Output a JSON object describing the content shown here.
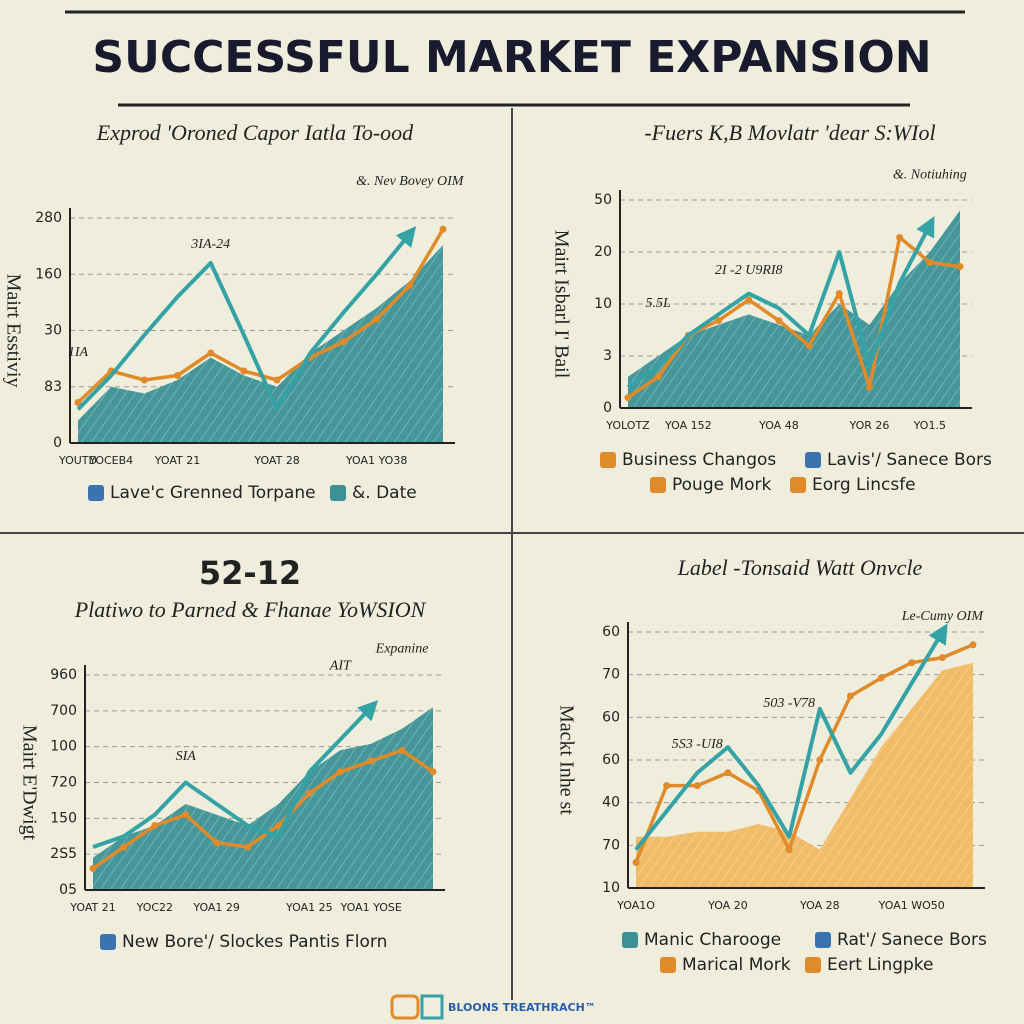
{
  "title": "SUCCESSFUL MARKET EXPANSION",
  "footer": "BLOONS TREATHRACH™",
  "chart_data": [
    {
      "type": "line",
      "title": "Exprod 'Oroned Capor Iatla To-ood",
      "ylabel": "Mairt Esstiviy",
      "ylim": [
        0,
        100
      ],
      "y_labels": [
        "280",
        "160",
        "30",
        "83",
        "0"
      ],
      "categories": [
        "YOUTD",
        "YOCEB4",
        null,
        "YOAT 21",
        null,
        null,
        "YOAT 28",
        null,
        null,
        "YOA1 YO38",
        null,
        null
      ],
      "series": [
        {
          "style": "area",
          "color": "#3b9196",
          "values": [
            10,
            25,
            22,
            28,
            38,
            30,
            25,
            40,
            50,
            60,
            72,
            88
          ]
        },
        {
          "style": "line",
          "color": "#e08a2a",
          "values": [
            18,
            32,
            28,
            30,
            40,
            32,
            28,
            38,
            45,
            55,
            70,
            95
          ]
        },
        {
          "style": "line",
          "color": "#35a3a6",
          "arrow": true,
          "values": [
            15,
            30,
            48,
            65,
            80,
            48,
            15,
            40,
            58,
            75,
            93,
            null
          ]
        }
      ],
      "annotations": [
        {
          "text": "3IA-24",
          "x": 4,
          "y": 88
        },
        {
          "text": "1IA",
          "x": 0,
          "y": 40
        },
        {
          "text": "&. Nev Bovey OIM",
          "x": 10,
          "y": 116
        }
      ],
      "legend": [
        {
          "label": "Lave'c Grenned Torpane",
          "color": "#3a73b0"
        },
        {
          "label": "&. Date",
          "color": "#3b9196"
        }
      ]
    },
    {
      "type": "line",
      "title": "-Fuers K,B Movlatr 'dear S:WIol",
      "ylabel": "Mairt Isbarl I' Bail",
      "ylim": [
        0,
        100
      ],
      "y_labels": [
        "50",
        "20",
        "10",
        "3",
        "0"
      ],
      "categories": [
        "YOLOTZ",
        null,
        "YOA 152",
        null,
        null,
        "YOA 48",
        null,
        null,
        "YOR 26",
        null,
        "YO1.5",
        null
      ],
      "series": [
        {
          "style": "area",
          "color": "#3b9196",
          "values": [
            15,
            25,
            35,
            40,
            45,
            40,
            35,
            50,
            40,
            60,
            75,
            95
          ]
        },
        {
          "style": "line",
          "color": "#e08a2a",
          "values": [
            5,
            15,
            35,
            42,
            52,
            42,
            30,
            55,
            10,
            82,
            70,
            68
          ]
        },
        {
          "style": "line",
          "color": "#35a3a6",
          "arrow": true,
          "values": [
            10,
            20,
            35,
            45,
            55,
            48,
            35,
            75,
            20,
            60,
            88,
            null
          ]
        }
      ],
      "annotations": [
        {
          "text": "5.5L",
          "x": 1,
          "y": 50
        },
        {
          "text": "2I -2 U9RI8",
          "x": 4,
          "y": 66
        },
        {
          "text": "&. Notiuhing",
          "x": 10,
          "y": 112
        }
      ],
      "legend": [
        {
          "label": "Business Changos",
          "color": "#e08a2a"
        },
        {
          "label": "Lavis'/ Sanece Bors",
          "color": "#3a73b0"
        },
        {
          "label": "Pouge Mork",
          "color": "#e08a2a"
        },
        {
          "label": "Eorg Lincsfe",
          "color": "#e08a2a"
        }
      ]
    },
    {
      "type": "line",
      "heading": "52-12",
      "title": "Platiwo to Parned & Fhanae YoWSION",
      "ylabel": "Mairt E'Dwigt",
      "ylim": [
        0,
        100
      ],
      "y_labels": [
        "960",
        "700",
        "100",
        "720",
        "150",
        "2S5",
        "05"
      ],
      "categories": [
        "YOAT 21",
        null,
        "YOC22",
        null,
        "YOA1 29",
        null,
        null,
        "YOA1 25",
        null,
        "YOA1 YOSE",
        null,
        null
      ],
      "series": [
        {
          "style": "area",
          "color": "#3b9196",
          "values": [
            15,
            25,
            30,
            40,
            35,
            30,
            40,
            55,
            65,
            68,
            75,
            85
          ]
        },
        {
          "style": "line",
          "color": "#e08a2a",
          "values": [
            10,
            20,
            30,
            35,
            22,
            20,
            30,
            45,
            55,
            60,
            65,
            55
          ]
        },
        {
          "style": "line",
          "color": "#35a3a6",
          "arrow": true,
          "values": [
            20,
            25,
            35,
            50,
            40,
            30,
            25,
            55,
            70,
            85,
            null,
            null
          ]
        }
      ],
      "annotations": [
        {
          "text": "SIA",
          "x": 3,
          "y": 62
        },
        {
          "text": "AIT",
          "x": 8,
          "y": 104
        },
        {
          "text": "Expanine",
          "x": 10,
          "y": 112
        }
      ],
      "legend": [
        {
          "label": "New Bore'/ Slockes Pantis Florn",
          "color": "#3a73b0"
        }
      ]
    },
    {
      "type": "line",
      "title": "Label -Tonsaid Watt Onvcle",
      "ylabel": "Mackt Inhe st",
      "ylim": [
        0,
        100
      ],
      "y_labels": [
        "60",
        "70",
        "60",
        "60",
        "40",
        "70",
        "10"
      ],
      "categories": [
        "YOA1O",
        null,
        null,
        "YOA 20",
        null,
        null,
        "YOA 28",
        null,
        null,
        "YOA1 WO50",
        null,
        null
      ],
      "series": [
        {
          "style": "area",
          "color": "#f0b860",
          "values": [
            20,
            20,
            22,
            22,
            25,
            22,
            15,
            35,
            55,
            70,
            85,
            88
          ]
        },
        {
          "style": "line",
          "color": "#e08a2a",
          "values": [
            10,
            40,
            40,
            45,
            38,
            15,
            50,
            75,
            82,
            88,
            90,
            95
          ]
        },
        {
          "style": "line",
          "color": "#35a3a6",
          "arrow": true,
          "values": [
            15,
            30,
            45,
            55,
            40,
            20,
            70,
            45,
            60,
            80,
            100,
            null
          ]
        }
      ],
      "annotations": [
        {
          "text": "5S3 -UI8",
          "x": 2,
          "y": 56
        },
        {
          "text": "503 -V78",
          "x": 5,
          "y": 72
        },
        {
          "text": "Le-Cumy OIM",
          "x": 10,
          "y": 106
        }
      ],
      "legend": [
        {
          "label": "Manic Charooge",
          "color": "#3b9196"
        },
        {
          "label": "Rat'/ Sanece Bors",
          "color": "#3a73b0"
        },
        {
          "label": "Marical Mork",
          "color": "#e08a2a"
        },
        {
          "label": "Eert Lingpke",
          "color": "#e08a2a"
        }
      ]
    }
  ]
}
